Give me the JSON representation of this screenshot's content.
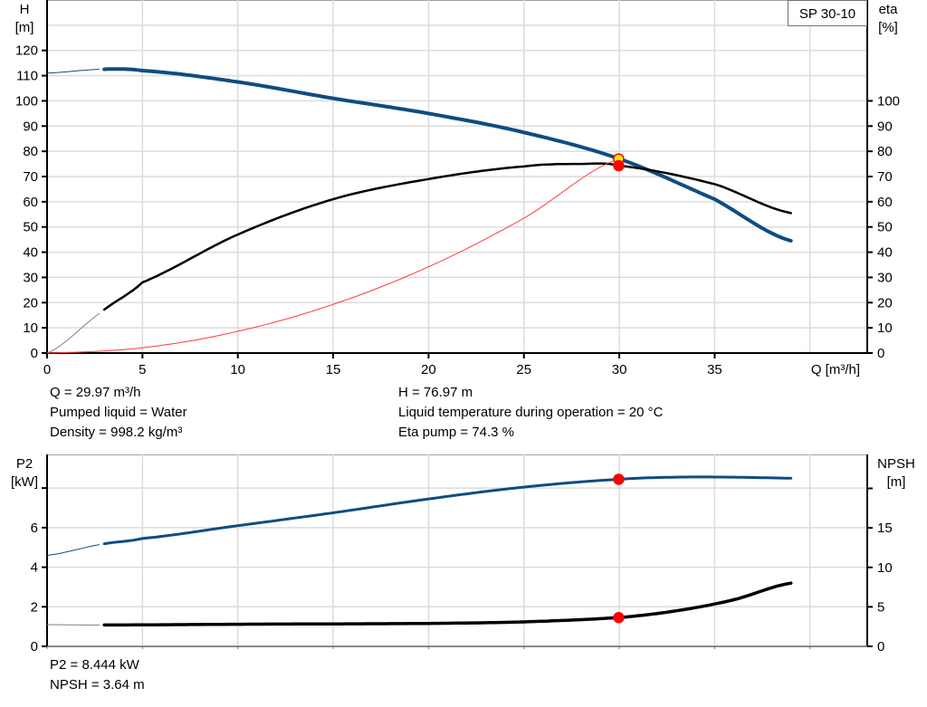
{
  "chart_data": [
    {
      "type": "line",
      "model_label": "SP 30-10",
      "xlabel": "Q [m³/h]",
      "xlim": [
        0,
        43
      ],
      "x_ticks": [
        0,
        5,
        10,
        15,
        20,
        25,
        30,
        35
      ],
      "ylabel_left": [
        "H",
        "[m]"
      ],
      "ylim_left": [
        0,
        140
      ],
      "y_ticks_left": [
        0,
        10,
        20,
        30,
        40,
        50,
        60,
        70,
        80,
        90,
        100,
        110,
        120
      ],
      "ylabel_right": [
        "eta",
        "[%]"
      ],
      "ylim_right": [
        0,
        140
      ],
      "y_ticks_right": [
        0,
        10,
        20,
        30,
        40,
        50,
        60,
        70,
        80,
        90,
        100
      ],
      "grid": true,
      "series": [
        {
          "key": "H",
          "axis": "left",
          "color": "#0f4c81",
          "x": [
            0,
            2.8,
            5,
            10,
            15,
            20,
            25,
            30,
            35,
            39
          ],
          "y": [
            111,
            112.5,
            112,
            107.5,
            101,
            95,
            87.5,
            77,
            61,
            44.5
          ],
          "thin_until": 2.8
        },
        {
          "key": "eta",
          "axis": "right",
          "color": "#000000",
          "x": [
            0,
            2.8,
            5,
            10,
            15,
            20,
            25,
            28,
            30,
            35,
            39
          ],
          "y": [
            0,
            16,
            28,
            47,
            61,
            69,
            74,
            75,
            74.3,
            67,
            55.5
          ],
          "thin_until": 2.8
        },
        {
          "key": "system",
          "axis": "left",
          "color": "#ff3b3b",
          "x": [
            0,
            5,
            10,
            15,
            20,
            25,
            30
          ],
          "y": [
            0,
            2.1,
            8.6,
            19.3,
            34.2,
            53.5,
            77
          ]
        }
      ],
      "operating_points": [
        {
          "series": "H",
          "x": 29.97,
          "y": 76.97,
          "fill": "#ffee00",
          "stroke": "#ff0000"
        },
        {
          "series": "eta",
          "x": 29.97,
          "y": 74.3,
          "fill": "#ff0000",
          "stroke": "#ff0000"
        }
      ]
    },
    {
      "type": "line",
      "xlim": [
        0,
        43
      ],
      "x_ticks": [
        0,
        5,
        10,
        15,
        20,
        25,
        30,
        35,
        40
      ],
      "ylabel_left": [
        "P2",
        "[kW]"
      ],
      "ylim_left": [
        0,
        9.7
      ],
      "y_ticks_left": [
        0,
        2,
        4,
        6,
        8
      ],
      "y_tick_labels_left": [
        "0",
        "2",
        "4",
        "6",
        ""
      ],
      "ylabel_right": [
        "NPSH",
        "[m]"
      ],
      "ylim_right": [
        0,
        24.3
      ],
      "y_ticks_right": [
        0,
        5,
        10,
        15,
        20
      ],
      "y_tick_labels_right": [
        "0",
        "5",
        "10",
        "15",
        ""
      ],
      "grid": true,
      "series": [
        {
          "key": "P2",
          "axis": "left",
          "color": "#0f4c81",
          "x": [
            0,
            2.8,
            5,
            10,
            15,
            20,
            25,
            30,
            33,
            36,
            39
          ],
          "y": [
            4.6,
            5.15,
            5.45,
            6.1,
            6.75,
            7.45,
            8.05,
            8.44,
            8.55,
            8.55,
            8.5
          ],
          "thin_until": 2.8
        },
        {
          "key": "NPSH",
          "axis": "right",
          "color": "#000000",
          "x": [
            0,
            2.8,
            10,
            20,
            25,
            30,
            33,
            36,
            39
          ],
          "y": [
            2.75,
            2.7,
            2.8,
            2.9,
            3.1,
            3.64,
            4.5,
            5.9,
            8.0
          ],
          "thin_until": 2.8
        }
      ],
      "operating_points": [
        {
          "series": "P2",
          "x": 29.97,
          "y": 8.444,
          "fill": "#ff0000",
          "stroke": "#ff0000"
        },
        {
          "series": "NPSH",
          "x": 29.97,
          "y": 3.64,
          "fill": "#ff0000",
          "stroke": "#ff0000"
        }
      ]
    }
  ],
  "info_top_left": [
    "Q = 29.97 m³/h",
    "Pumped liquid = Water",
    "Density = 998.2 kg/m³"
  ],
  "info_top_right": [
    "H = 76.97 m",
    "Liquid temperature during operation = 20 °C",
    "Eta pump = 74.3 %"
  ],
  "info_bottom": [
    "P2 = 8.444 kW",
    "NPSH = 3.64 m"
  ]
}
